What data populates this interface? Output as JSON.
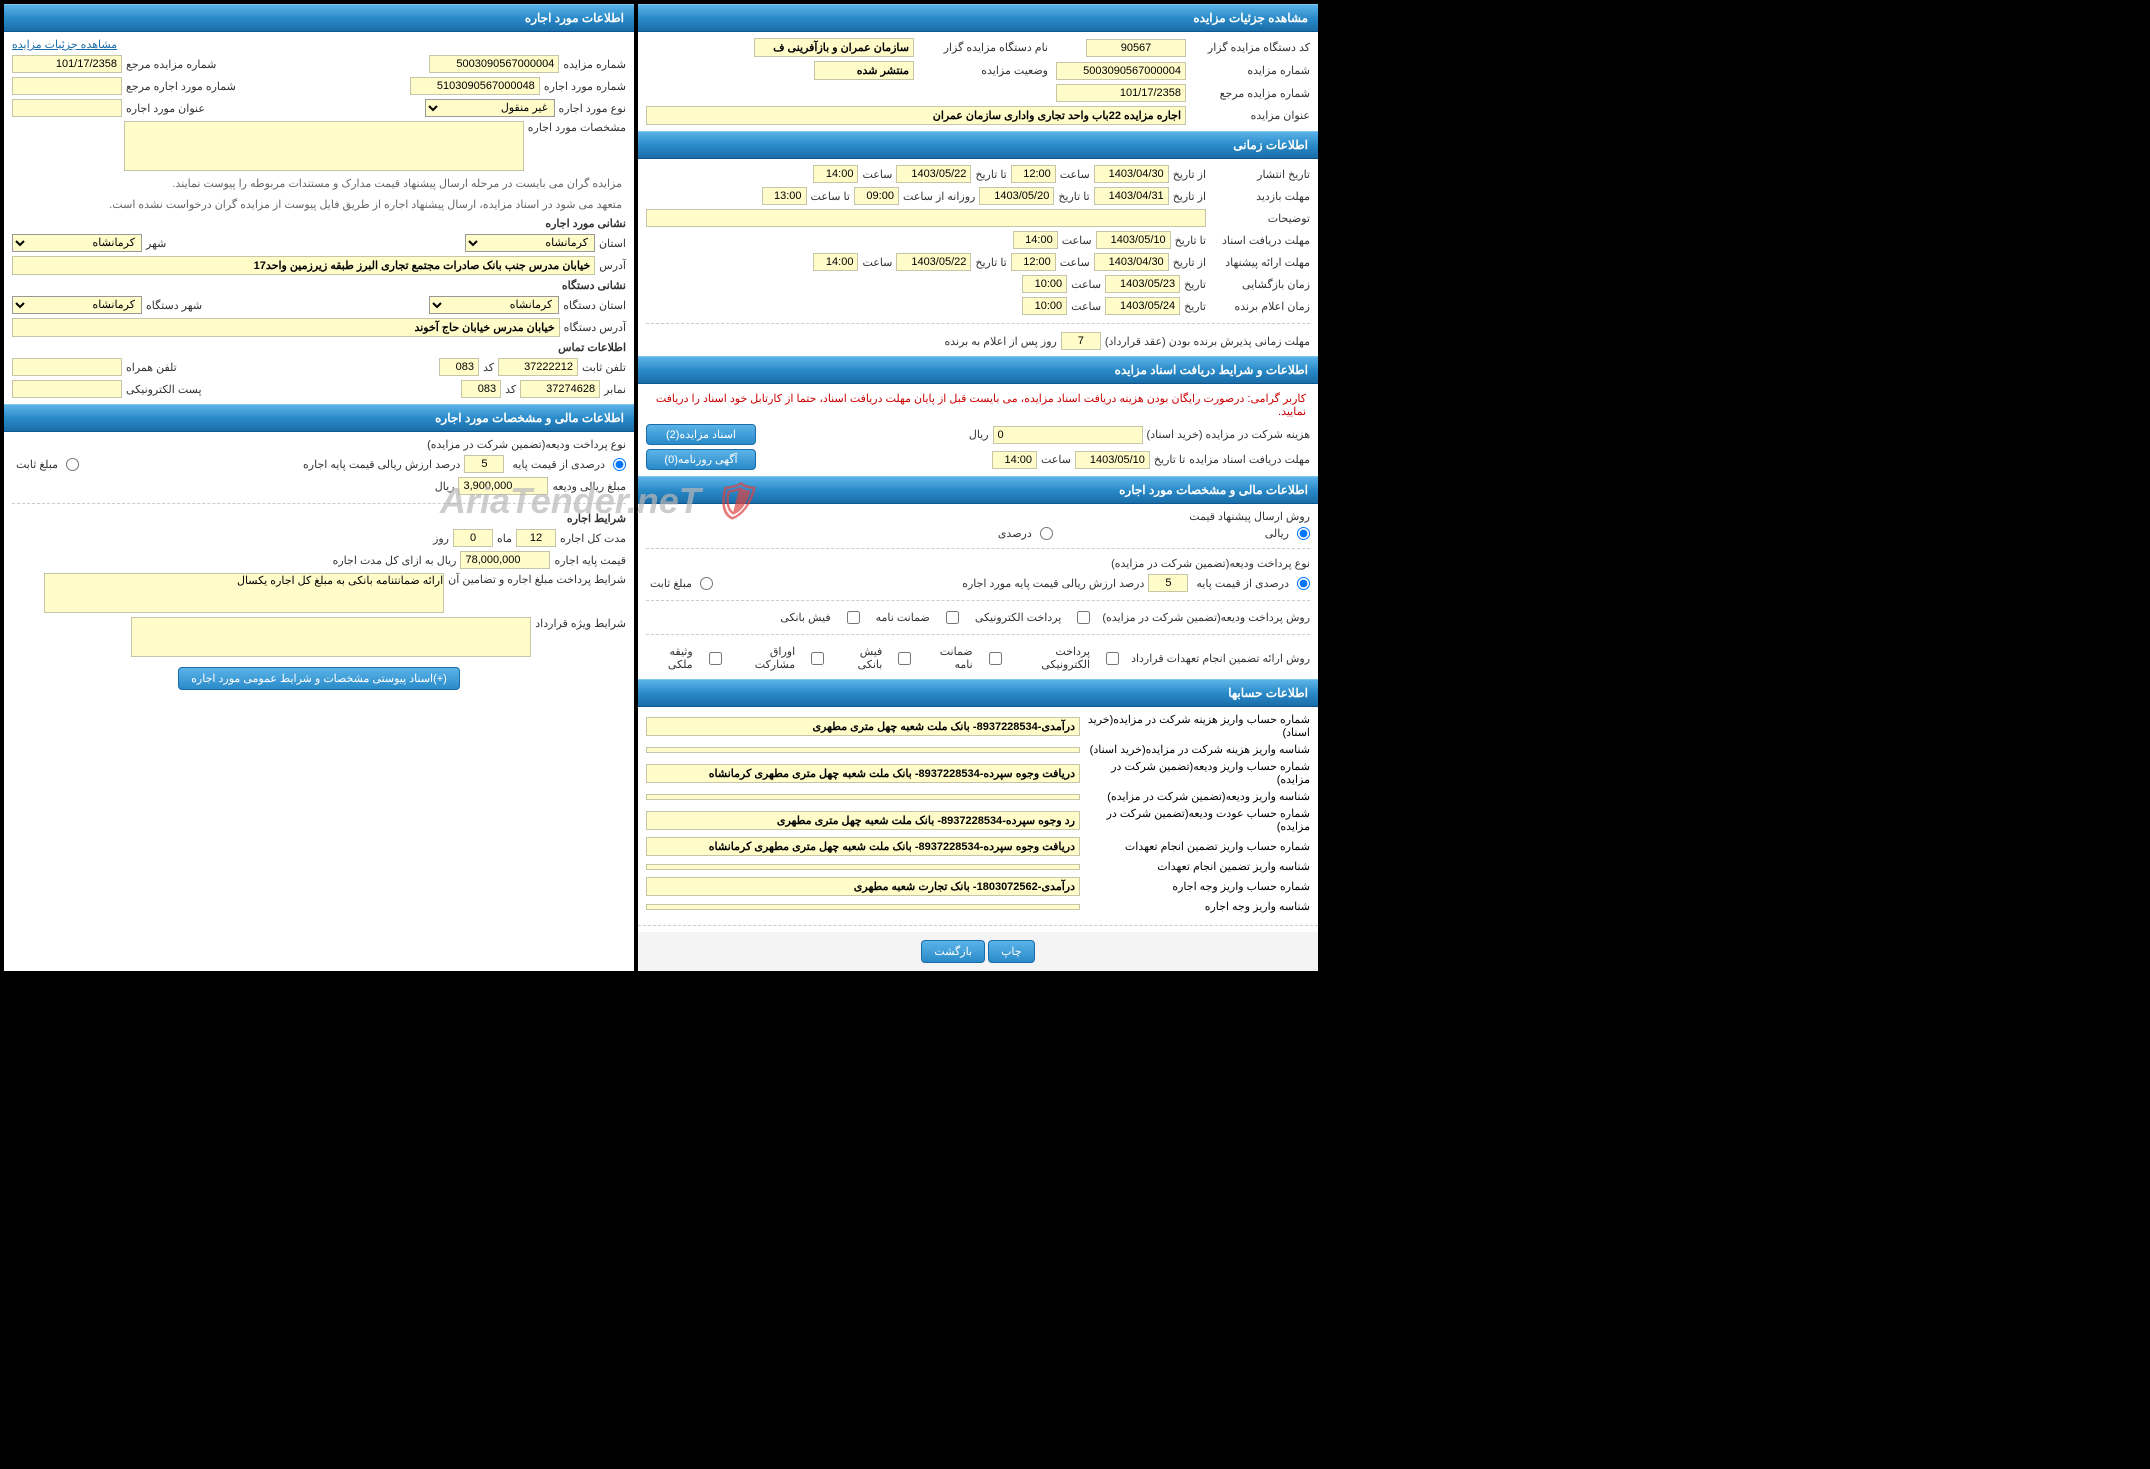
{
  "colors": {
    "header_bg_top": "#5bb3e8",
    "header_bg_bottom": "#1a6da8",
    "header_text": "#ffffff",
    "field_bg": "#fffcc9",
    "field_border": "#c5c5a8",
    "body_bg": "#ffffff",
    "page_bg": "#000000",
    "note_red": "#cc0000",
    "note_gray": "#666666",
    "link": "#1a6da8"
  },
  "watermark": "AriaTender.neT",
  "right": {
    "sections": {
      "details": {
        "title": "مشاهده جزئیات مزایده",
        "auctioneer_code_label": "کد دستگاه مزایده گزار",
        "auctioneer_code": "90567",
        "auctioneer_name_label": "نام دستگاه مزایده گزار",
        "auctioneer_name": "سازمان عمران و بازآفرینی ف",
        "auction_number_label": "شماره مزایده",
        "auction_number": "5003090567000004",
        "auction_status_label": "وضعیت مزایده",
        "auction_status": "منتشر شده",
        "ref_number_label": "شماره مزایده مرجع",
        "ref_number": "101/17/2358",
        "auction_title_label": "عنوان مزایده",
        "auction_title": "اجاره مزایده 22باب واحد تجاری واداری سازمان عمران"
      },
      "time": {
        "title": "اطلاعات زمانی",
        "publish_label": "تاریخ انتشار",
        "from_date_label": "از تاریخ",
        "to_date_label": "تا تاریخ",
        "time_label": "ساعت",
        "to_time_label": "تا ساعت",
        "daily_from_label": "روزانه از ساعت",
        "date_label": "تاریخ",
        "publish_from": "1403/04/30",
        "publish_time": "12:00",
        "publish_to": "1403/05/22",
        "publish_to_time": "14:00",
        "visit_label": "مهلت بازدید",
        "visit_from": "1403/04/31",
        "visit_to": "1403/05/20",
        "visit_daily_from": "09:00",
        "visit_to_time": "13:00",
        "notes_label": "توضیحات",
        "doc_receive_label": "مهلت دریافت اسناد",
        "doc_receive_to": "1403/05/10",
        "doc_receive_time": "14:00",
        "proposal_label": "مهلت ارائه پیشنهاد",
        "proposal_from": "1403/04/30",
        "proposal_from_time": "12:00",
        "proposal_to": "1403/05/22",
        "proposal_to_time": "14:00",
        "opening_label": "زمان بازگشایی",
        "opening_date": "1403/05/23",
        "opening_time": "10:00",
        "announce_label": "زمان اعلام برنده",
        "announce_date": "1403/05/24",
        "announce_time": "10:00",
        "winner_deadline_label": "مهلت زمانی پذیرش برنده بودن (عقد قرارداد)",
        "winner_deadline_value": "7",
        "winner_deadline_suffix": "روز پس از اعلام به برنده"
      },
      "doc_terms": {
        "title": "اطلاعات و شرایط دریافت اسناد مزایده",
        "note": "کاربر گرامی: درصورت رایگان بودن هزینه دریافت اسناد مزایده، می بایست قبل از پایان مهلت دریافت اسناد، حتما از کارتابل خود اسناد را دریافت نمایید.",
        "participation_cost_label": "هزینه شرکت در مزایده (خرید اسناد)",
        "participation_cost_value": "0",
        "rial": "ریال",
        "doc_deadline_label": "مهلت دریافت اسناد مزایده",
        "doc_deadline_to": "1403/05/10",
        "doc_deadline_time": "14:00",
        "btn_auction_docs": "اسناد مزایده(2)",
        "btn_daily_ad": "آگهی روزنامه(0)"
      },
      "financial": {
        "title": "اطلاعات مالی و مشخصات مورد اجاره",
        "submit_method_label": "روش ارسال پیشنهاد قیمت",
        "radio_rial": "ریالی",
        "radio_percent": "درصدی",
        "deposit_type_label": "نوع پرداخت ودیعه(تضمین شرکت در مزایده)",
        "radio_base_percent": "درصدی از قیمت پایه",
        "base_percent_value": "5",
        "base_percent_suffix": "درصد ارزش ریالی قیمت پایه مورد اجاره",
        "radio_fixed": "مبلغ ثابت",
        "deposit_method_label": "روش پرداخت ودیعه(تضمین شرکت در مزایده)",
        "chk_epay": "پرداخت الکترونیکی",
        "chk_guarantee": "ضمانت نامه",
        "chk_bank_receipt": "فیش بانکی",
        "contract_guarantee_label": "روش ارائه تضمین انجام تعهدات قرارداد",
        "chk_bonds": "اوراق مشارکت",
        "chk_property": "وثیقه ملکی"
      },
      "accounts": {
        "title": "اطلاعات حسابها",
        "rows": [
          {
            "label": "شماره حساب واریز هزینه شرکت در مزایده(خرید اسناد)",
            "value": "درآمدی-8937228534- بانک ملت شعبه چهل متری مطهری"
          },
          {
            "label": "شناسه واریز هزینه شرکت در مزایده(خرید اسناد)",
            "value": ""
          },
          {
            "label": "شماره حساب واریز ودیعه(تضمین شرکت در مزایده)",
            "value": "دریافت وجوه سپرده-8937228534- بانک ملت شعبه چهل متری مطهری کرمانشاه"
          },
          {
            "label": "شناسه واریز ودیعه(تضمین شرکت در مزایده)",
            "value": ""
          },
          {
            "label": "شماره حساب عودت ودیعه(تضمین شرکت در مزایده)",
            "value": "رد وجوه سپرده-8937228534- بانک ملت شعبه چهل متری مطهری"
          },
          {
            "label": "شماره حساب واریز تضمین انجام تعهدات",
            "value": "دریافت وجوه سپرده-8937228534- بانک ملت شعبه چهل متری مطهری کرمانشاه"
          },
          {
            "label": "شناسه واریز تضمین انجام تعهدات",
            "value": ""
          },
          {
            "label": "شماره حساب واریز وجه اجاره",
            "value": "درآمدی-1803072562- بانک تجارت شعبه مطهری"
          },
          {
            "label": "شناسه واریز وجه اجاره",
            "value": ""
          }
        ]
      }
    },
    "footer": {
      "btn_print": "چاپ",
      "btn_back": "بازگشت"
    }
  },
  "left": {
    "sections": {
      "lease": {
        "title": "اطلاعات مورد اجاره",
        "link_details": "مشاهده جزئیات مزایده",
        "auction_number_label": "شماره مزایده",
        "auction_number": "5003090567000004",
        "ref_number_label": "شماره مزایده مرجع",
        "ref_number": "101/17/2358",
        "lease_number_label": "شماره مورد اجاره",
        "lease_number": "5103090567000048",
        "lease_ref_label": "شماره مورد اجاره مرجع",
        "lease_type_label": "نوع مورد اجاره",
        "lease_type": "غیر منقول",
        "lease_title_label": "عنوان مورد اجاره",
        "lease_spec_label": "مشخصات مورد اجاره",
        "note1": "مزایده گران می بایست در مرحله ارسال پیشنهاد قیمت مدارک و مستندات مربوطه را پیوست نمایند.",
        "note2": "متعهد می شود در اسناد مزایده، ارسال پیشنهاد اجاره از طریق فایل پیوست از مزایده گران درخواست نشده است.",
        "lease_address_label": "نشانی مورد اجاره",
        "province_label": "استان",
        "province": "کرمانشاه",
        "city_label": "شهر",
        "city": "کرمانشاه",
        "address_label": "آدرس",
        "address": "خیابان مدرس جنب بانک صادرات مجتمع تجاری البرز طبقه زیرزمین واحد17",
        "org_address_label": "نشانی دستگاه",
        "org_province_label": "استان دستگاه",
        "org_province": "کرمانشاه",
        "org_city_label": "شهر دستگاه",
        "org_city": "کرمانشاه",
        "org_addr_label": "آدرس دستگاه",
        "org_addr": "خیابان مدرس خیابان حاج آخوند",
        "contact_label": "اطلاعات تماس",
        "phone_label": "تلفن ثابت",
        "phone": "37222212",
        "code_label": "کد",
        "code": "083",
        "mobile_label": "تلفن همراه",
        "fax_label": "نمابر",
        "fax": "37274628",
        "fax_code": "083",
        "email_label": "پست الکترونیکی"
      },
      "financial": {
        "title": "اطلاعات مالی و مشخصات مورد اجاره",
        "deposit_type_label": "نوع پرداخت ودیعه(تضمین شرکت در مزایده)",
        "radio_base_percent": "درصدی از قیمت پایه",
        "base_percent": "5",
        "base_percent_suffix": "درصد ارزش ریالی قیمت پایه اجاره",
        "radio_fixed": "مبلغ ثابت",
        "deposit_amount_label": "مبلغ ریالی ودیعه",
        "deposit_amount": "3,900,000",
        "rial": "ریال",
        "terms_title": "شرایط اجاره",
        "total_duration_label": "مدت کل اجاره",
        "months": "12",
        "month_label": "ماه",
        "days": "0",
        "day_label": "روز",
        "base_price_label": "قیمت پایه اجاره",
        "base_price": "78,000,000",
        "base_price_suffix": "ریال به ازای کل مدت اجاره",
        "payment_terms_label": "شرایط پرداخت مبلغ اجاره و تضامین آن",
        "payment_terms": "ارائه ضمانتنامه بانکی به مبلغ کل اجاره یکسال",
        "contract_terms_label": "شرایط ویژه قرارداد",
        "btn_attachments": "(+)اسناد پیوستی مشخصات و شرایط عمومی مورد اجاره"
      }
    }
  }
}
